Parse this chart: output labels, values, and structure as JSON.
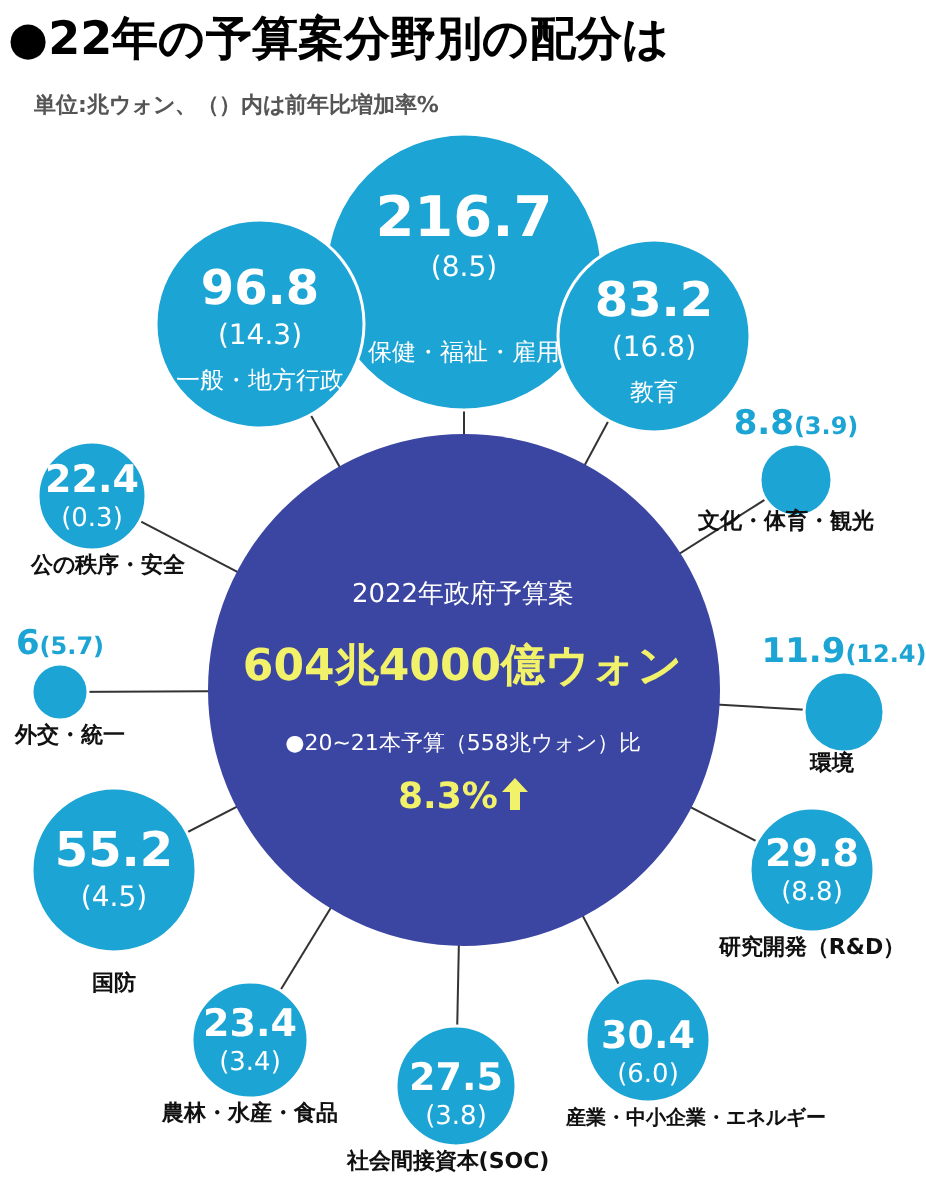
{
  "chart_data": {
    "type": "other",
    "title": "●22年の予算案分野別の配分は",
    "subtitle": "単位:兆ウォン、（）内は前年比増加率%",
    "categories": [
      "保健・福祉・雇用",
      "一般・地方行政",
      "教育",
      "公の秩序・安全",
      "文化・体育・観光",
      "外交・統一",
      "環境",
      "国防",
      "研究開発（R&D）",
      "農林・水産・食品",
      "社会間接資本(SOC)",
      "産業・中小企業・エネルギー"
    ],
    "series": [
      {
        "color": "#1ba4d4",
        "values": [
          216.7,
          96.8,
          83.2,
          22.4,
          8.8,
          6,
          11.9,
          55.2,
          29.8,
          23.4,
          27.5,
          30.4
        ]
      },
      {
        "values": [
          8.5,
          14.3,
          16.8,
          0.3,
          3.9,
          5.7,
          12.4,
          4.5,
          8.8,
          3.4,
          3.8,
          6.0
        ],
        "value_labels": [
          "(8.5)",
          "(14.3)",
          "(16.8)",
          "(0.3)",
          "(3.9)",
          "(5.7)",
          "(12.4)",
          "(4.5)",
          "(8.8)",
          "(3.4)",
          "(3.8)",
          "(6.0)"
        ]
      }
    ],
    "data_labels": true,
    "annotations": [
      "2022年政府予算案",
      "604兆4000億ウォン",
      "●20~21本予算（558兆ウォン）比",
      "8.3%"
    ]
  }
}
